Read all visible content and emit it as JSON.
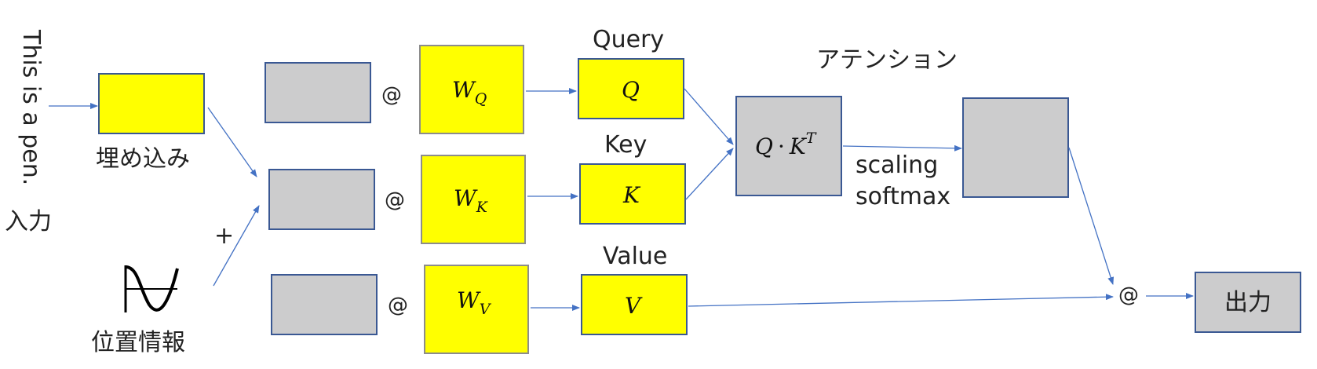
{
  "input_sentence": "This is a pen.",
  "input_label": "入力",
  "embedding_label": "埋め込み",
  "plus_sign": "+",
  "position_label": "位置情報",
  "matmul_symbol": "@",
  "weights": {
    "wq": {
      "base": "W",
      "sub": "Q"
    },
    "wk": {
      "base": "W",
      "sub": "K"
    },
    "wv": {
      "base": "W",
      "sub": "V"
    }
  },
  "query": {
    "title": "Query",
    "symbol": "Q"
  },
  "key": {
    "title": "Key",
    "symbol": "K"
  },
  "value": {
    "title": "Value",
    "symbol": "V"
  },
  "attention": {
    "title": "アテンション",
    "qk": {
      "q": "Q",
      "dot": "·",
      "k": "K",
      "sup": "T"
    },
    "scaling": "scaling",
    "softmax": "softmax"
  },
  "output_label": "出力",
  "colors": {
    "yellow": "#ffff00",
    "gray": "#cccccd",
    "border": "#3a5893",
    "arrow": "#4472c4"
  }
}
